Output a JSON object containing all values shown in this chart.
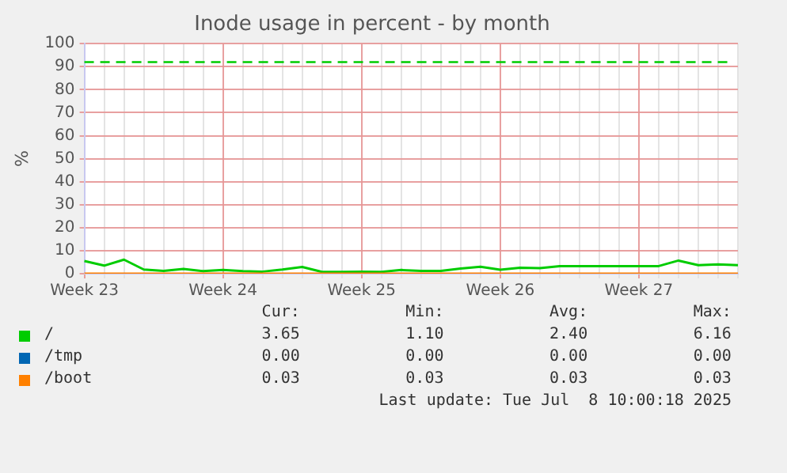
{
  "chart_data": {
    "type": "line",
    "title": "Inode usage in percent - by month",
    "ylabel": "%",
    "categories": [
      "Week 23",
      null,
      null,
      null,
      null,
      null,
      null,
      "Week 24",
      null,
      null,
      null,
      null,
      null,
      null,
      "Week 25",
      null,
      null,
      null,
      null,
      null,
      null,
      "Week 26",
      null,
      null,
      null,
      null,
      null,
      null,
      "Week 27",
      null,
      null,
      null,
      null,
      null
    ],
    "ylim": [
      0,
      100
    ],
    "yticks": [
      0,
      10,
      20,
      30,
      40,
      50,
      60,
      70,
      80,
      90,
      100
    ],
    "grid": true,
    "legend": "bottom",
    "marker": "none",
    "line_style": "solid",
    "series": [
      {
        "name": "/",
        "color": "#00cc00",
        "values": [
          5.5,
          3.5,
          6.1,
          1.8,
          1.2,
          2.1,
          1.1,
          1.6,
          1.1,
          0.9,
          1.8,
          2.9,
          0.8,
          0.8,
          0.9,
          0.8,
          1.6,
          1.2,
          1.2,
          2.2,
          3.0,
          1.7,
          2.6,
          2.4,
          3.3,
          3.3,
          3.3,
          3.3,
          3.3,
          3.3,
          5.7,
          3.7,
          4.0,
          3.7
        ]
      },
      {
        "name": "/tmp",
        "color": "#0066b3",
        "values": [
          null,
          null,
          null,
          null,
          null,
          null,
          null,
          null,
          null,
          null,
          null,
          null,
          null,
          null,
          null,
          null,
          null,
          null,
          null,
          null,
          null,
          null,
          null,
          null,
          null,
          null,
          null,
          null,
          null,
          null,
          null,
          null,
          null,
          null
        ]
      },
      {
        "name": "/boot",
        "color": "#ff8000",
        "values": [
          0,
          0,
          0,
          0,
          0,
          0,
          0,
          0,
          0,
          0,
          0,
          0,
          0,
          0,
          0,
          0,
          0,
          0,
          0,
          0,
          0,
          0,
          0,
          0,
          0,
          0,
          0,
          0,
          0,
          0,
          0,
          0,
          0,
          0
        ]
      }
    ],
    "ref_lines": [
      {
        "axis": "y",
        "value": 92,
        "color": "#00cc00",
        "line_style": "dashed"
      }
    ],
    "annotations": [
      "Cur:",
      "Min:",
      "Avg:",
      "Max:",
      "3.65",
      "1.10",
      "2.40",
      "6.16",
      "0.00",
      "0.00",
      "0.00",
      "0.00",
      "0.03",
      "0.03",
      "0.03",
      "0.03",
      "Last update: Tue Jul  8 10:00:18 2025"
    ]
  }
}
